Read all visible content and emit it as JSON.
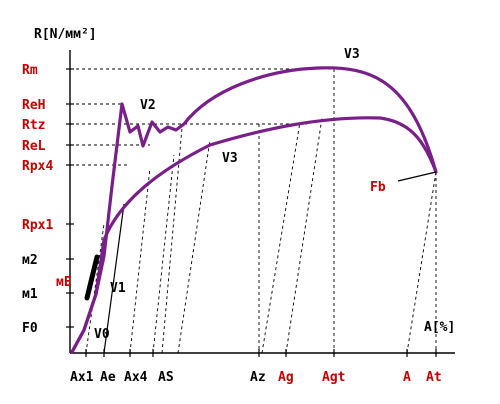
{
  "axes": {
    "y_title": "R[N/мм²]",
    "x_title": "A[%]"
  },
  "y_labels": [
    {
      "key": "Rm",
      "text": "Rm",
      "color": "#cc0000"
    },
    {
      "key": "ReH",
      "text": "ReH",
      "color": "#cc0000"
    },
    {
      "key": "Rtz",
      "text": "Rtz",
      "color": "#cc0000"
    },
    {
      "key": "ReL",
      "text": "ReL",
      "color": "#cc0000"
    },
    {
      "key": "Rpx4",
      "text": "Rpx4",
      "color": "#cc0000"
    },
    {
      "key": "Rpx1",
      "text": "Rpx1",
      "color": "#cc0000"
    },
    {
      "key": "m2",
      "text": "м2",
      "color": "#000000"
    },
    {
      "key": "m1",
      "text": "м1",
      "color": "#000000"
    },
    {
      "key": "F0",
      "text": "F0",
      "color": "#000000"
    }
  ],
  "x_labels": [
    {
      "key": "Ax1",
      "text": "Ax1",
      "color": "#000000"
    },
    {
      "key": "Ae",
      "text": "Ae",
      "color": "#000000"
    },
    {
      "key": "Ax4",
      "text": "Ax4",
      "color": "#000000"
    },
    {
      "key": "AS",
      "text": "AS",
      "color": "#000000"
    },
    {
      "key": "Az",
      "text": "Az",
      "color": "#000000"
    },
    {
      "key": "Ag",
      "text": "Ag",
      "color": "#cc0000"
    },
    {
      "key": "Agt",
      "text": "Agt",
      "color": "#cc0000"
    },
    {
      "key": "A",
      "text": "A",
      "color": "#cc0000"
    },
    {
      "key": "At",
      "text": "At",
      "color": "#cc0000"
    }
  ],
  "annotations": {
    "mE": "мE",
    "V0": "V0",
    "V1": "V1",
    "V2": "V2",
    "V3_top": "V3",
    "V3_mid": "V3",
    "Fb": "Fb"
  },
  "colors": {
    "curve": "#7a1f8a",
    "highlight_label": "#cc0000",
    "axis": "#000000"
  }
}
